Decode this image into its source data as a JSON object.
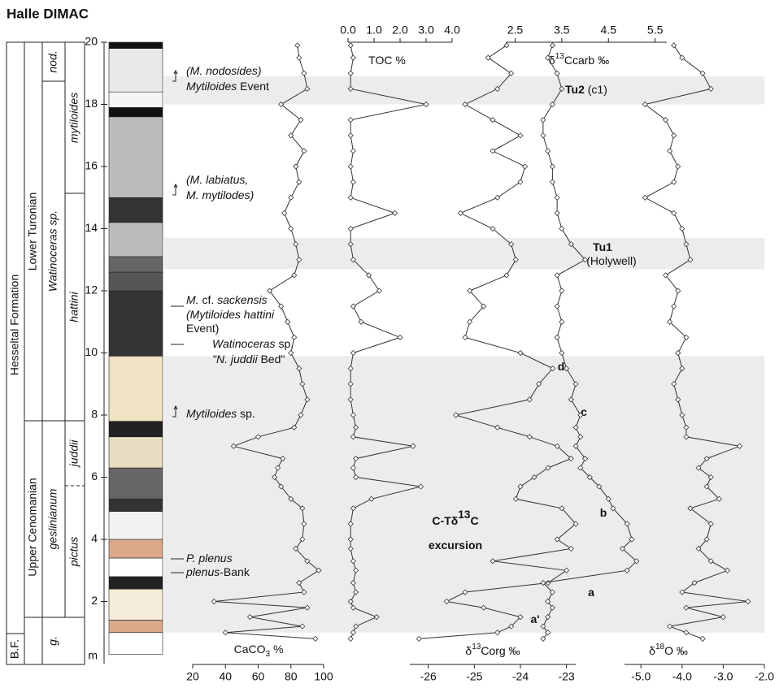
{
  "chart_data": {
    "type": "depth_profile",
    "title": "Halle DIMAC",
    "ylim": [
      0,
      20
    ],
    "yticks": [
      2,
      4,
      6,
      8,
      10,
      12,
      14,
      16,
      18,
      20
    ],
    "y_unit": "m",
    "depth": [
      0.8,
      1.0,
      1.2,
      1.5,
      1.8,
      2.0,
      2.3,
      2.6,
      3.0,
      3.3,
      3.7,
      4.0,
      4.5,
      5.0,
      5.3,
      5.7,
      6.0,
      6.3,
      6.6,
      7.0,
      7.3,
      7.6,
      8.0,
      8.5,
      9.0,
      9.5,
      10.0,
      10.5,
      11.0,
      11.5,
      12.0,
      12.5,
      13.0,
      13.5,
      14.0,
      14.5,
      15.0,
      15.5,
      16.0,
      16.5,
      17.0,
      17.5,
      18.0,
      18.5,
      19.0,
      19.5,
      19.9
    ],
    "panels": [
      {
        "label": {
          "text": "CaCO",
          "sub": "3",
          "tail": " %"
        },
        "axis": "bottom",
        "xlim": [
          20,
          100
        ],
        "xticks": [
          20,
          40,
          60,
          80,
          100
        ],
        "color": "#333333",
        "values": [
          95,
          40,
          87,
          55,
          90,
          33,
          88,
          85,
          97,
          90,
          83,
          87,
          88,
          87,
          80,
          74,
          70,
          72,
          75,
          45,
          60,
          82,
          86,
          90,
          87,
          85,
          80,
          82,
          78,
          74,
          67,
          82,
          85,
          83,
          80,
          76,
          80,
          85,
          83,
          88,
          80,
          86,
          74,
          90,
          88,
          85,
          84
        ]
      },
      {
        "label": {
          "text": "TOC %"
        },
        "axis": "top",
        "xlim": [
          0,
          4
        ],
        "xticks": [
          {
            "value": 0,
            "label": "0.0"
          },
          {
            "value": 1,
            "label": "1.0"
          },
          {
            "value": 2,
            "label": "2.0"
          },
          {
            "value": 3,
            "label": "3.0"
          },
          {
            "value": 4,
            "label": "4.0"
          }
        ],
        "color": "#333333",
        "values": [
          0.1,
          0.2,
          0.3,
          1.1,
          0.2,
          0.1,
          0.3,
          0.2,
          0.3,
          0.2,
          0.1,
          0.1,
          0.1,
          0.2,
          0.9,
          2.8,
          0.3,
          0.2,
          0.3,
          2.5,
          0.2,
          0.3,
          0.2,
          0.1,
          0.1,
          0.1,
          0.2,
          2.0,
          0.5,
          0.2,
          1.2,
          0.8,
          0.2,
          0.1,
          0.1,
          1.8,
          0.1,
          0.2,
          0.1,
          0.2,
          0.1,
          0.1,
          3.0,
          0.1,
          0.1,
          0.2,
          0.1
        ]
      },
      {
        "label": {
          "text": "δ",
          "sup": "13",
          "tail": "Corg ‰"
        },
        "axis": "bottom",
        "xlim": [
          -26.4,
          -22.8
        ],
        "xticks": [
          -26,
          -25,
          -24,
          -23
        ],
        "color": "#333333",
        "values": [
          -26.2,
          -24.5,
          -24.2,
          -24.0,
          -24.8,
          -25.6,
          -25.2,
          -23.4,
          -23.0,
          -24.6,
          -22.9,
          -23.2,
          -22.8,
          -23.1,
          -24.1,
          -24.0,
          -23.7,
          -23.4,
          -22.9,
          -23.2,
          -23.8,
          -24.5,
          -25.4,
          -23.8,
          -23.6,
          -23.3,
          -24.0,
          -25.2,
          -25.1,
          -24.8,
          -25.1,
          -24.3,
          -24.1,
          -24.2,
          -24.6,
          -25.3,
          -24.5,
          -24.0,
          -23.9,
          -24.6,
          -24.0,
          -24.6,
          -25.2,
          -24.5,
          -24.2,
          -24.7,
          -24.3
        ]
      },
      {
        "label": {
          "text": "δ",
          "sup": "13",
          "tail": "Ccarb ‰"
        },
        "axis": "top",
        "xlim": [
          2.3,
          5.75
        ],
        "xticks": [
          2.5,
          3.5,
          4.5,
          5.5
        ],
        "color": "#333333",
        "values": [
          3.1,
          3.2,
          3.1,
          3.2,
          3.3,
          3.2,
          3.3,
          3.1,
          4.9,
          5.1,
          4.8,
          5.0,
          4.9,
          4.6,
          4.5,
          4.3,
          4.1,
          3.9,
          4.0,
          3.8,
          3.9,
          3.8,
          3.9,
          3.7,
          3.8,
          3.6,
          3.5,
          3.4,
          3.5,
          3.4,
          3.5,
          3.4,
          4.0,
          3.7,
          3.5,
          3.4,
          3.4,
          3.3,
          3.3,
          3.2,
          3.1,
          3.1,
          3.3,
          3.5,
          3.4,
          3.2,
          3.3
        ]
      },
      {
        "label": {
          "text": "δ",
          "sup": "18",
          "tail": "O ‰"
        },
        "axis": "bottom",
        "xlim": [
          -5.4,
          -2.0
        ],
        "xticks": [
          {
            "value": -5,
            "label": "-5.0"
          },
          {
            "value": -4,
            "label": "-4.0"
          },
          {
            "value": -3,
            "label": "-3.0"
          },
          {
            "value": -2,
            "label": "-2.0"
          }
        ],
        "color": "#333333",
        "values": [
          -3.5,
          -3.9,
          -4.3,
          -3.0,
          -3.9,
          -2.4,
          -4.0,
          -3.7,
          -2.9,
          -3.3,
          -3.6,
          -3.4,
          -3.3,
          -3.8,
          -3.1,
          -3.4,
          -3.3,
          -3.6,
          -3.4,
          -2.6,
          -3.9,
          -3.9,
          -4.0,
          -4.1,
          -4.2,
          -4.0,
          -4.1,
          -3.9,
          -4.3,
          -4.2,
          -4.1,
          -4.4,
          -3.8,
          -3.9,
          -4.0,
          -4.2,
          -4.9,
          -4.2,
          -4.1,
          -4.3,
          -4.2,
          -4.4,
          -4.9,
          -3.3,
          -3.5,
          -4.0,
          -4.2
        ]
      }
    ],
    "bands": [
      {
        "range": [
          1.0,
          9.9
        ],
        "color": "#ececec"
      },
      {
        "range": [
          12.7,
          13.7
        ],
        "color": "#ececec"
      },
      {
        "range": [
          18.0,
          18.9
        ],
        "color": "#ececec"
      }
    ],
    "band_labels": [
      {
        "segments": [
          {
            "text": "Tu2",
            "bold": true
          },
          {
            "text": " (c1)"
          }
        ]
      },
      {
        "segments": [
          {
            "text": "Tu1",
            "bold": true
          }
        ]
      },
      {
        "segments": [
          {
            "text": "(Holywell)"
          }
        ]
      },
      {
        "segments": [
          {
            "text": "C-Tδ",
            "bold": true
          },
          {
            "text": "13",
            "bold": true,
            "sup": true
          },
          {
            "text": "C",
            "bold": true
          }
        ]
      },
      {
        "segments": [
          {
            "text": "excursion",
            "bold": true
          }
        ]
      },
      {
        "segments": [
          {
            "text": "d",
            "bold": true
          }
        ]
      },
      {
        "segments": [
          {
            "text": "c",
            "bold": true
          }
        ]
      },
      {
        "segments": [
          {
            "text": "b",
            "bold": true
          }
        ]
      },
      {
        "segments": [
          {
            "text": "a",
            "bold": true
          }
        ]
      },
      {
        "segments": [
          {
            "text": "a'",
            "bold": true
          }
        ]
      }
    ],
    "annotations": [
      {
        "segments": [
          {
            "text": "(M. nodosides)",
            "italic": true
          }
        ]
      },
      {
        "segments": [
          {
            "text": "Mytiloides",
            "italic": true
          },
          {
            "text": " Event"
          }
        ]
      },
      {
        "segments": [
          {
            "text": "(M. labiatus,",
            "italic": true
          }
        ]
      },
      {
        "segments": [
          {
            "text": "M. mytilodes)",
            "italic": true
          }
        ]
      },
      {
        "segments": [
          {
            "text": "M.",
            "italic": true
          },
          {
            "text": " cf. "
          },
          {
            "text": "sackensis",
            "italic": true
          }
        ]
      },
      {
        "segments": [
          {
            "text": "(Mytiloides hattini",
            "italic": true
          }
        ]
      },
      {
        "segments": [
          {
            "text": "Event)"
          }
        ]
      },
      {
        "segments": [
          {
            "text": "Watinoceras",
            "italic": true
          },
          {
            "text": " sp."
          }
        ]
      },
      {
        "segments": [
          {
            "text": "\"N. juddii",
            "italic": true
          },
          {
            "text": " Bed\""
          }
        ]
      },
      {
        "segments": [
          {
            "text": "Mytiloides",
            "italic": true
          },
          {
            "text": " sp."
          }
        ]
      },
      {
        "segments": [
          {
            "text": "P. plenus",
            "italic": true
          }
        ]
      },
      {
        "segments": [
          {
            "text": "plenus",
            "italic": true
          },
          {
            "text": "-Bank"
          }
        ]
      }
    ],
    "stratigraphy": [
      {
        "text": "Hesseltal Formation"
      },
      {
        "text": "B.F."
      },
      {
        "text": "Lower Turonian"
      },
      {
        "text": "Upper Cenomanian"
      },
      {
        "text": "nod.",
        "italic": true
      },
      {
        "text": "Watinoceras sp.",
        "italic": true
      },
      {
        "text": "geslinianum",
        "italic": true
      },
      {
        "text": "g.",
        "italic": true
      },
      {
        "text": "mytiloides",
        "italic": true
      },
      {
        "text": "hattini",
        "italic": true
      },
      {
        "text": "juddii",
        "italic": true
      },
      {
        "text": "pictus",
        "italic": true
      }
    ]
  }
}
